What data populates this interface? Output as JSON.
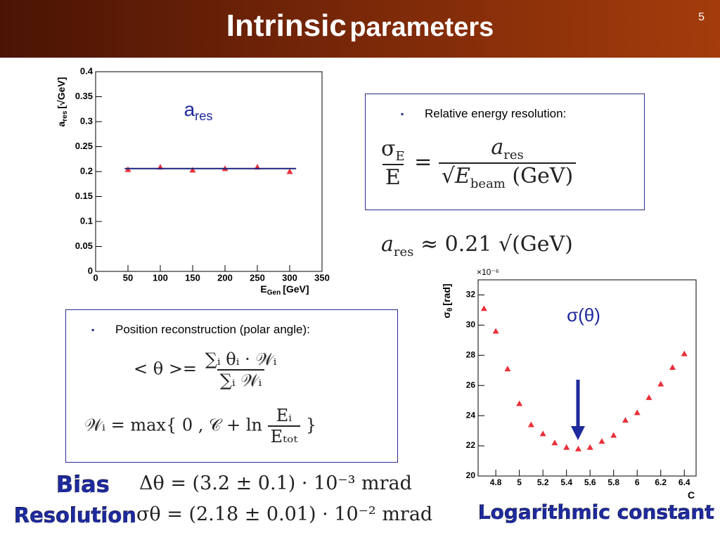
{
  "title_main": "Intrinsic",
  "title_rest": "parameters",
  "page_number": "5",
  "energy_box": {
    "bullet": "Relative energy resolution:",
    "lhs_num": "σ",
    "lhs_num_sub": "E",
    "lhs_den": "E",
    "eq": "=",
    "rhs_num": "a",
    "rhs_num_sub": "res",
    "radical": "√",
    "rhs_den": "E",
    "rhs_den_sub": "beam",
    "rhs_den_unit": "(GeV)"
  },
  "approx": {
    "a": "a",
    "sub": "res",
    "rest": "≈ 0.21",
    "radical": "√",
    "unit": "(GeV)"
  },
  "position_box": {
    "bullet": "Position reconstruction (polar angle):",
    "line1_lhs": "< θ >=",
    "line1_num": "∑ᵢ θᵢ · 𝒲ᵢ",
    "line1_den": "∑ᵢ 𝒲ᵢ",
    "line2_lhs": "𝒲ᵢ = max{ 0 ,  𝒞 + ln",
    "line2_num": "Eᵢ",
    "line2_den": "Eₜₒₜ",
    "line2_end": "}"
  },
  "bias": {
    "label": "Bias",
    "formula": "Δθ = (3.2 ± 0.1) · 10⁻³ mrad"
  },
  "resolution": {
    "label": "Resolution",
    "formula": "σθ = (2.18 ± 0.01) · 10⁻² mrad"
  },
  "caption": "Logarithmic constant",
  "chart_data": [
    {
      "type": "scatter",
      "annotation": "a",
      "annotation_sub": "res",
      "xlabel": "E",
      "xlabel_sub": "Gen",
      "xlabel_unit": "[GeV]",
      "ylabel": "a",
      "ylabel_sub": "res",
      "ylabel_unit": "[√GeV]",
      "xlim": [
        0,
        350
      ],
      "xticks": [
        0,
        50,
        100,
        150,
        200,
        250,
        300,
        350
      ],
      "ylim": [
        0,
        0.4
      ],
      "yticks": [
        0,
        0.05,
        0.1,
        0.15,
        0.2,
        0.25,
        0.3,
        0.35,
        0.4
      ],
      "series": [
        {
          "color": "#e8303a",
          "marker": "triangle",
          "x": [
            50,
            100,
            150,
            200,
            250,
            300
          ],
          "values": [
            0.204,
            0.209,
            0.203,
            0.206,
            0.209,
            0.2
          ]
        },
        {
          "color": "#1a237e",
          "marker": "line",
          "x": [
            45,
            310
          ],
          "values": [
            0.206,
            0.206
          ]
        }
      ]
    },
    {
      "type": "scatter",
      "annotation": "σ(θ)",
      "xlabel": "C",
      "ylabel": "σ",
      "ylabel_sub": "θ",
      "ylabel_unit": "[rad]",
      "y_multiplier": "×10⁻⁶",
      "xlim": [
        4.65,
        6.5
      ],
      "xticks": [
        4.8,
        5,
        5.2,
        5.4,
        5.6,
        5.8,
        6,
        6.2,
        6.4
      ],
      "ylim": [
        20,
        33
      ],
      "yticks": [
        20,
        22,
        24,
        26,
        28,
        30,
        32
      ],
      "series": [
        {
          "color": "#e8303a",
          "marker": "triangle",
          "x": [
            4.7,
            4.8,
            4.9,
            5.0,
            5.1,
            5.2,
            5.3,
            5.4,
            5.5,
            5.6,
            5.7,
            5.8,
            5.9,
            6.0,
            6.1,
            6.2,
            6.3,
            6.4
          ],
          "values": [
            31.1,
            29.6,
            27.1,
            24.8,
            23.4,
            22.8,
            22.2,
            21.9,
            21.8,
            21.9,
            22.3,
            22.7,
            23.7,
            24.2,
            25.2,
            26.1,
            27.2,
            28.1
          ]
        }
      ]
    }
  ]
}
